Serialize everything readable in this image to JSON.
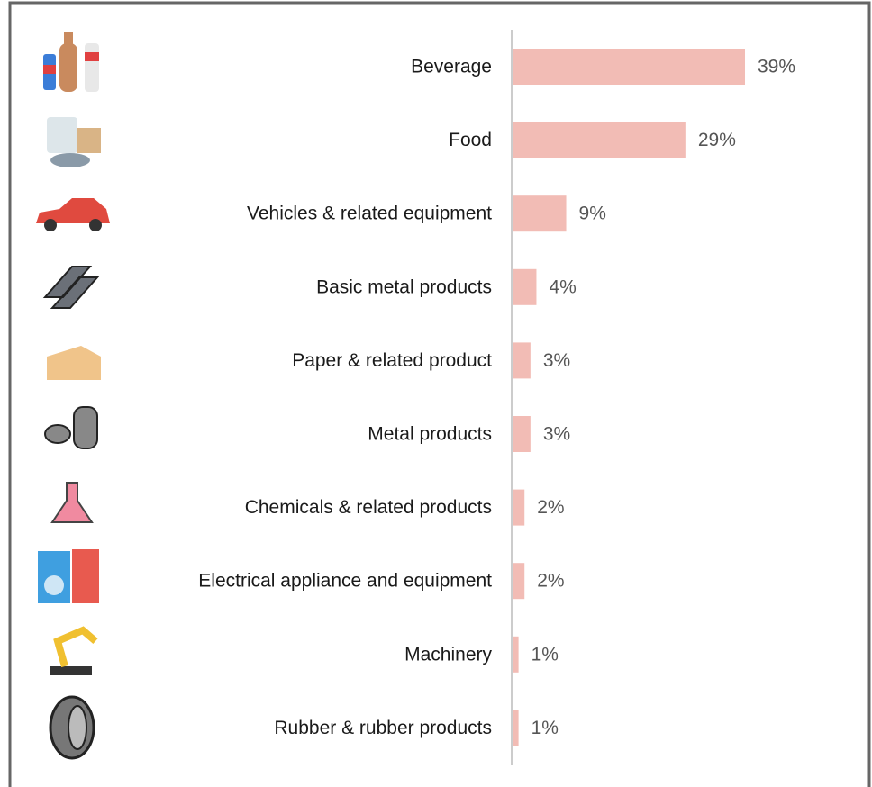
{
  "chart_data": {
    "type": "bar",
    "orientation": "horizontal",
    "categories": [
      "Beverage",
      "Food",
      "Vehicles & related equipment",
      "Basic metal products",
      "Paper & related product",
      "Metal products",
      "Chemicals & related products",
      "Electrical appliance and equipment",
      "Machinery",
      "Rubber & rubber products"
    ],
    "values": [
      39,
      29,
      9,
      4,
      3,
      3,
      2,
      2,
      1,
      1
    ],
    "value_labels": [
      "39%",
      "29%",
      "9%",
      "4%",
      "3%",
      "3%",
      "2%",
      "2%",
      "1%",
      "1%"
    ],
    "color": "#f2bcb5"
  }
}
